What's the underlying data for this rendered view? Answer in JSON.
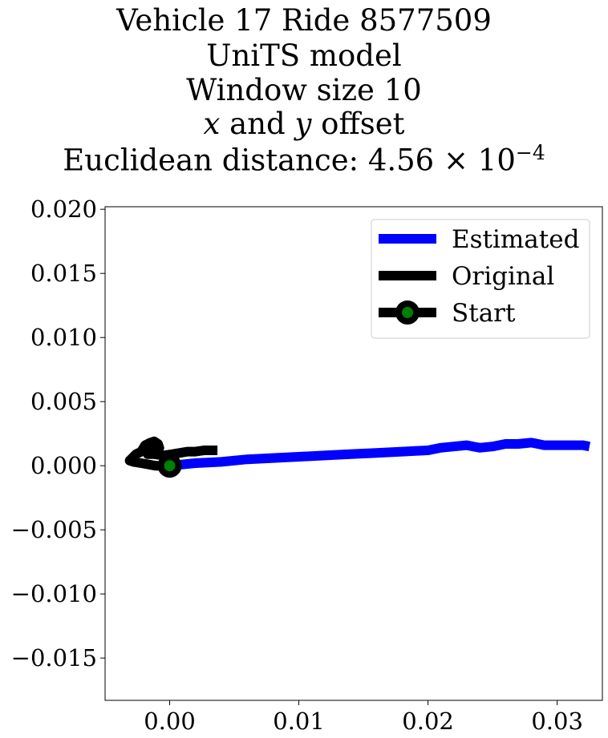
{
  "chart_data": {
    "type": "line",
    "title_lines": [
      "Vehicle 17 Ride 8577509",
      "UniTS model",
      "Window size 10",
      "x and y offset",
      "Euclidean distance: 4.56 × 10⁻⁴"
    ],
    "title_parts": {
      "distance_label": "Euclidean distance: ",
      "distance_mantissa": "4.56",
      "distance_times": "×",
      "distance_base": "10",
      "distance_exponent": "−4",
      "offset_x": "x",
      "offset_and": " and ",
      "offset_y": "y",
      "offset_rest": " offset"
    },
    "xlabel": "",
    "ylabel": "",
    "xlim": [
      -0.005,
      0.0335
    ],
    "ylim": [
      -0.0183,
      0.0202
    ],
    "x_ticks": [
      0.0,
      0.01,
      0.02,
      0.03
    ],
    "x_tick_labels": [
      "0.00",
      "0.01",
      "0.02",
      "0.03"
    ],
    "y_ticks": [
      -0.015,
      -0.01,
      -0.005,
      0.0,
      0.005,
      0.01,
      0.015,
      0.02
    ],
    "y_tick_labels": [
      "−0.015",
      "−0.010",
      "−0.005",
      "0.000",
      "0.005",
      "0.010",
      "0.015",
      "0.020"
    ],
    "grid": false,
    "legend_position": "top-right",
    "series": [
      {
        "name": "Estimated",
        "color": "#0000ff",
        "x": [
          0.0,
          0.002,
          0.004,
          0.006,
          0.008,
          0.01,
          0.012,
          0.014,
          0.016,
          0.018,
          0.02,
          0.021,
          0.022,
          0.023,
          0.0235,
          0.024,
          0.025,
          0.026,
          0.027,
          0.028,
          0.0285,
          0.029,
          0.03,
          0.031,
          0.032,
          0.0325
        ],
        "y": [
          0.0,
          0.0002,
          0.0003,
          0.0005,
          0.0006,
          0.0007,
          0.0008,
          0.0009,
          0.001,
          0.0011,
          0.0012,
          0.0014,
          0.0015,
          0.0016,
          0.0015,
          0.0014,
          0.0015,
          0.0017,
          0.0017,
          0.0018,
          0.0017,
          0.0016,
          0.0016,
          0.0016,
          0.0016,
          0.0015
        ]
      },
      {
        "name": "Original",
        "color": "#000000",
        "x": [
          0.0,
          -0.0011,
          -0.0022,
          -0.0028,
          -0.0031,
          -0.0029,
          -0.0026,
          -0.0022,
          -0.0019,
          -0.0015,
          -0.0012,
          -0.0009,
          -0.0008,
          -0.001,
          -0.0014,
          -0.0018,
          -0.0017,
          -0.0012,
          -0.0005,
          0.0002,
          0.0008,
          0.0014,
          0.002,
          0.0027,
          0.0037
        ],
        "y": [
          0.0,
          0.0,
          0.0002,
          0.0003,
          0.0004,
          0.0006,
          0.0009,
          0.0011,
          0.0016,
          0.0018,
          0.0019,
          0.0017,
          0.0014,
          0.0012,
          0.0013,
          0.0011,
          0.0009,
          0.0009,
          0.0008,
          0.0009,
          0.001,
          0.0011,
          0.0011,
          0.0012,
          0.0012
        ]
      }
    ],
    "start_point": {
      "name": "Start",
      "x": 0.0,
      "y": 0.0,
      "edge_color": "#000000",
      "face_color": "#008000"
    },
    "legend": [
      {
        "label": "Estimated",
        "color": "#0000ff",
        "marker": false
      },
      {
        "label": "Original",
        "color": "#000000",
        "marker": false
      },
      {
        "label": "Start",
        "color": "#000000",
        "marker": true,
        "marker_face": "#008000"
      }
    ]
  }
}
